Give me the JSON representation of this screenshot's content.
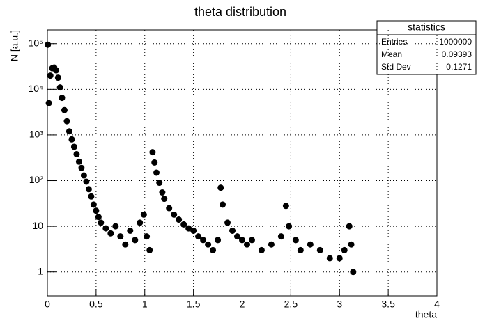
{
  "chart_data": {
    "type": "scatter",
    "title": "theta distribution",
    "x_label": "theta",
    "y_label": "N [a.u.]",
    "log_y": true,
    "grid": true,
    "stats": {
      "title": "statistics",
      "rows": [
        [
          "Entries",
          "1000000"
        ],
        [
          "Mean",
          "0.09393"
        ],
        [
          "Std Dev",
          "0.1271"
        ]
      ]
    },
    "xlim": [
      0,
      4
    ],
    "xticks": [
      0,
      0.5,
      1,
      1.5,
      2,
      2.5,
      3,
      3.5,
      4
    ],
    "ylim": [
      0.3,
      200000
    ],
    "yticks": [
      1,
      10,
      {
        "value": 100,
        "label": "10²"
      },
      {
        "value": 1000,
        "label": "10³"
      },
      {
        "value": 10000,
        "label": "10⁴"
      },
      {
        "value": 100000,
        "label": "10⁵"
      }
    ],
    "series": [
      {
        "color": "#000000",
        "x": [
          0.005,
          0.015,
          0.03,
          0.05,
          0.07,
          0.09,
          0.11,
          0.13,
          0.15,
          0.175,
          0.2,
          0.225,
          0.25,
          0.275,
          0.3,
          0.325,
          0.35,
          0.375,
          0.4,
          0.425,
          0.45,
          0.475,
          0.5,
          0.525,
          0.55,
          0.6,
          0.65,
          0.7,
          0.75,
          0.8,
          0.85,
          0.9,
          0.95,
          0.99,
          1.02,
          1.05,
          1.08,
          1.1,
          1.12,
          1.15,
          1.18,
          1.2,
          1.25,
          1.3,
          1.35,
          1.4,
          1.45,
          1.5,
          1.55,
          1.6,
          1.65,
          1.7,
          1.75,
          1.78,
          1.8,
          1.85,
          1.9,
          1.95,
          2.0,
          2.05,
          2.1,
          2.2,
          2.3,
          2.4,
          2.45,
          2.48,
          2.55,
          2.6,
          2.7,
          2.8,
          2.9,
          3.0,
          3.05,
          3.1,
          3.12,
          3.14
        ],
        "values": [
          95000,
          5000,
          20000,
          29000,
          30000,
          26000,
          18000,
          11000,
          6500,
          3500,
          2000,
          1200,
          800,
          550,
          380,
          260,
          190,
          130,
          95,
          65,
          45,
          30,
          22,
          16,
          12,
          9,
          7,
          10,
          6,
          4,
          8,
          5,
          12,
          18,
          6,
          3,
          420,
          250,
          150,
          90,
          55,
          40,
          25,
          18,
          14,
          11,
          9,
          8,
          6,
          5,
          4,
          3,
          5,
          70,
          30,
          12,
          8,
          6,
          5,
          4,
          5,
          3,
          4,
          6,
          28,
          10,
          5,
          3,
          4,
          3,
          2,
          2,
          3,
          10,
          4,
          1
        ]
      }
    ]
  }
}
